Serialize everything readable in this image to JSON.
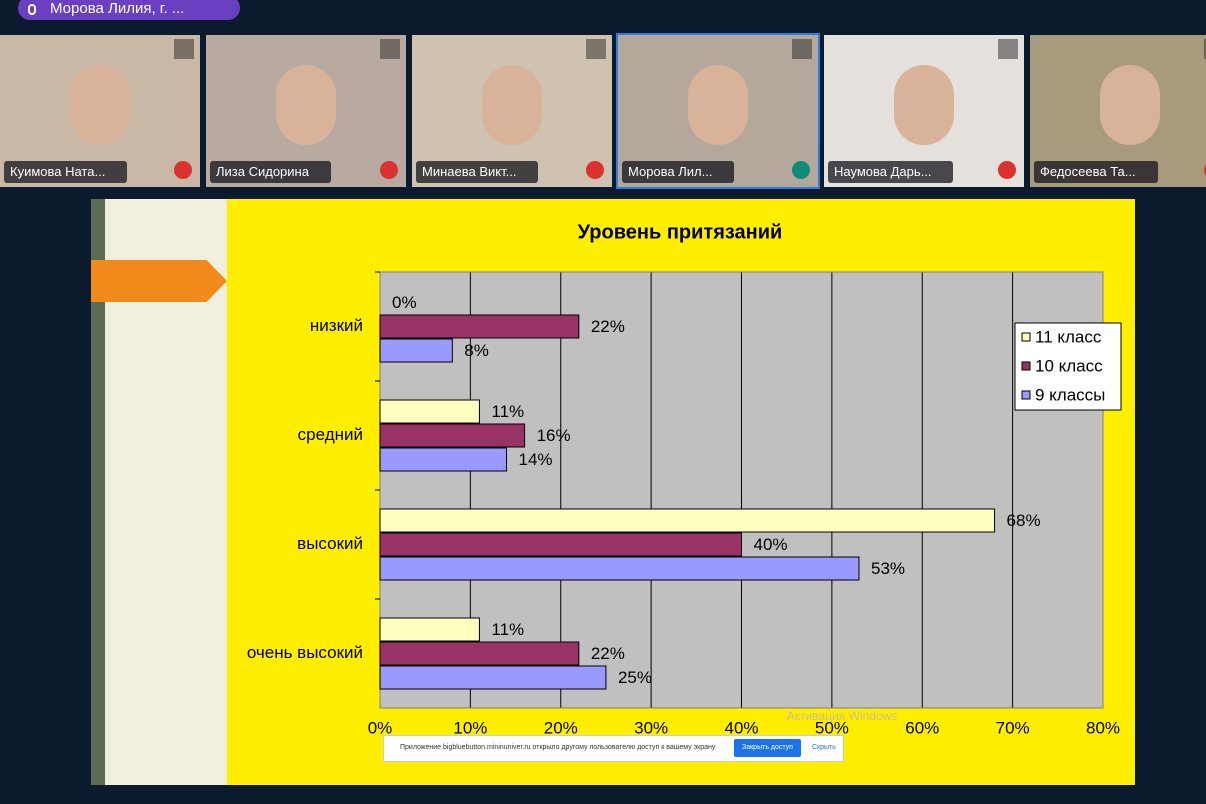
{
  "header": {
    "presenter": "Морова Лилия, г. ..."
  },
  "participants": [
    "Куимова Ната...",
    "Лиза Сидорина",
    "Минаева Викт...",
    "Морова Лил...",
    "Наумова Дарь...",
    "Федосеева Та..."
  ],
  "chart_data": {
    "type": "bar",
    "orientation": "horizontal",
    "title": "Уровень притязаний",
    "categories": [
      "низкий",
      "средний",
      "высокий",
      "очень высокий"
    ],
    "series": [
      {
        "name": "11 класс",
        "color": "#ffffc0",
        "values": [
          0,
          11,
          68,
          11
        ],
        "value_labels": [
          "0%",
          "11%",
          "68%",
          "11%"
        ]
      },
      {
        "name": "10 класс",
        "color": "#993366",
        "values": [
          22,
          16,
          40,
          22
        ],
        "value_labels": [
          "22%",
          "16%",
          "40%",
          "22%"
        ]
      },
      {
        "name": "9 классы",
        "color": "#9999ff",
        "values": [
          8,
          14,
          53,
          25
        ],
        "value_labels": [
          "8%",
          "14%",
          "53%",
          "25%"
        ]
      }
    ],
    "xlim": [
      0,
      80
    ],
    "xticks": [
      {
        "value": 0,
        "label": "0%"
      },
      {
        "value": 10,
        "label": "10%"
      },
      {
        "value": 20,
        "label": "20%"
      },
      {
        "value": 30,
        "label": "30%"
      },
      {
        "value": 40,
        "label": "40%"
      },
      {
        "value": 50,
        "label": "50%"
      },
      {
        "value": 60,
        "label": "60%"
      },
      {
        "value": 70,
        "label": "70%"
      },
      {
        "value": 80,
        "label": "80%"
      }
    ],
    "grid": true,
    "legend": "right"
  },
  "watermark": "Активация Windows",
  "notification": {
    "text": "Приложение bigbluebutton.mininuniver.ru открыло другому пользователю доступ к вашему экрану",
    "button": "Закрыть доступ",
    "link": "Скрыть"
  }
}
